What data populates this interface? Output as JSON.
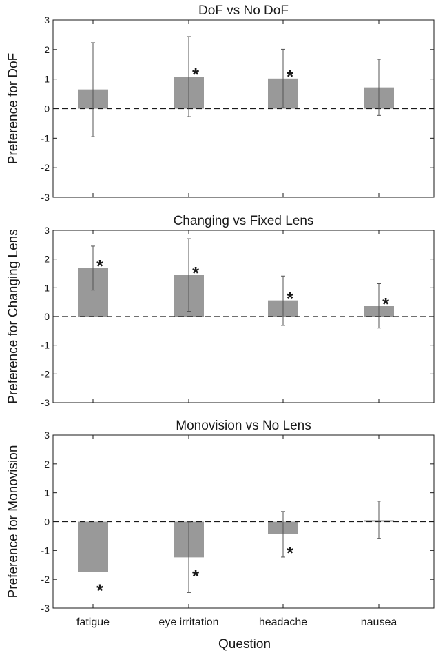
{
  "figure": {
    "xlabel": "Question"
  },
  "chart_data": [
    {
      "type": "bar",
      "title": "DoF vs No DoF",
      "ylabel": "Preference for DoF",
      "xlabel": "",
      "ylim": [
        -3,
        3
      ],
      "yticks": [
        -3,
        -2,
        -1,
        0,
        1,
        2,
        3
      ],
      "categories": [
        "fatigue",
        "eye irritation",
        "headache",
        "nausea"
      ],
      "values": [
        0.65,
        1.08,
        1.02,
        0.72
      ],
      "error_low": [
        -0.95,
        -0.27,
        0.03,
        -0.23
      ],
      "error_high": [
        2.23,
        2.44,
        2.01,
        1.67
      ],
      "significant": [
        false,
        true,
        true,
        false
      ],
      "show_tick_labels": false,
      "reference_line": 0,
      "bar_color": "#999999"
    },
    {
      "type": "bar",
      "title": "Changing vs Fixed Lens",
      "ylabel": "Preference for Changing Lens",
      "xlabel": "",
      "ylim": [
        -3,
        3
      ],
      "yticks": [
        -3,
        -2,
        -1,
        0,
        1,
        2,
        3
      ],
      "categories": [
        "fatigue",
        "eye irritation",
        "headache",
        "nausea"
      ],
      "values": [
        1.68,
        1.44,
        0.56,
        0.36
      ],
      "error_low": [
        0.92,
        0.18,
        -0.31,
        -0.4
      ],
      "error_high": [
        2.45,
        2.71,
        1.41,
        1.14
      ],
      "significant": [
        true,
        true,
        true,
        true
      ],
      "show_tick_labels": false,
      "reference_line": 0,
      "bar_color": "#999999"
    },
    {
      "type": "bar",
      "title": "Monovision vs No Lens",
      "ylabel": "Preference for Monovision",
      "xlabel": "Question",
      "ylim": [
        -3,
        3
      ],
      "yticks": [
        -3,
        -2,
        -1,
        0,
        1,
        2,
        3
      ],
      "categories": [
        "fatigue",
        "eye irritation",
        "headache",
        "nausea"
      ],
      "values": [
        -1.75,
        -1.24,
        -0.44,
        0.05
      ],
      "error_low": [
        null,
        -2.46,
        -1.23,
        -0.58
      ],
      "error_high": [
        null,
        -0.01,
        0.35,
        0.71
      ],
      "significant": [
        true,
        true,
        true,
        false
      ],
      "show_tick_labels": true,
      "reference_line": 0,
      "bar_color": "#999999"
    }
  ]
}
